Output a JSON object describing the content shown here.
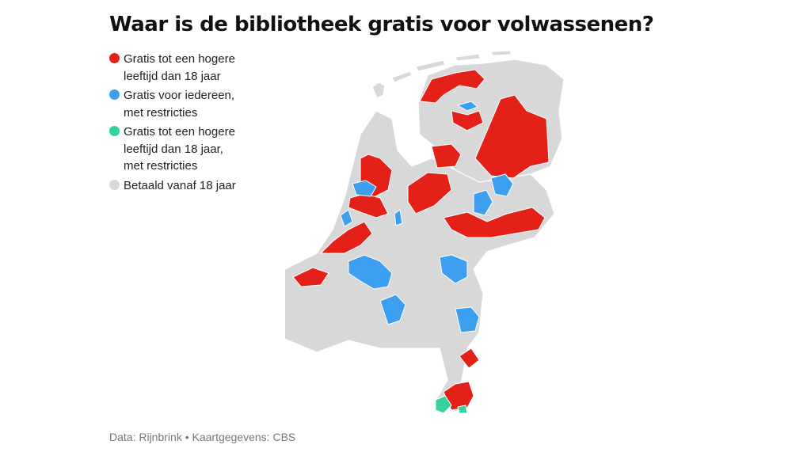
{
  "title": "Waar is de bibliotheek gratis voor volwassenen?",
  "legend": [
    {
      "label": "Gratis tot een hogere leeftijd dan 18 jaar",
      "color": "#e32119"
    },
    {
      "label": "Gratis voor iedereen, met restricties",
      "color": "#3d9ff0"
    },
    {
      "label": "Gratis tot een hogere leeftijd dan 18 jaar, met restricties",
      "color": "#34d39e"
    },
    {
      "label": "Betaald vanaf 18 jaar",
      "color": "#d8d8d8"
    }
  ],
  "source": "Data: Rijnbrink • Kaartgegevens: CBS",
  "map": {
    "base_color": "#d8d8d8",
    "border_color": "#ffffff"
  }
}
